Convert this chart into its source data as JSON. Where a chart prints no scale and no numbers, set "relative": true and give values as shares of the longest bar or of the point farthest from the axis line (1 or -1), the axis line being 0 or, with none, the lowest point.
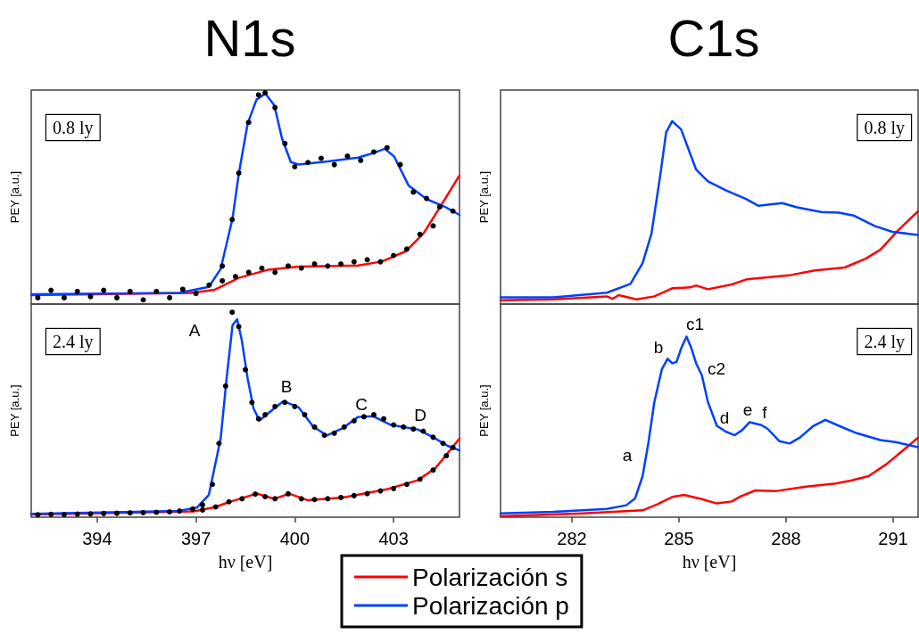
{
  "chart_data": [
    {
      "type": "line",
      "title": "N1s",
      "ylabel": "PEY [a.u.]",
      "relative": true,
      "xlim": [
        392,
        405
      ],
      "tick_labels": false,
      "line_style": "solid",
      "marker": "none",
      "annotations": [
        "0.8 ly"
      ],
      "series": [
        {
          "color": "#ff0000",
          "x": [
            392.0,
            396.85,
            397.57,
            398.3,
            399.2,
            400.11,
            401.92,
            402.64,
            403.37,
            403.91,
            404.36,
            405.0
          ],
          "values": [
            0.042,
            0.053,
            0.068,
            0.124,
            0.163,
            0.177,
            0.183,
            0.201,
            0.25,
            0.335,
            0.447,
            0.609
          ]
        },
        {
          "color": "#0040ff",
          "x": [
            392.0,
            396.48,
            397.39,
            397.75,
            398.11,
            398.3,
            398.57,
            398.84,
            399.11,
            399.38,
            399.61,
            399.88,
            400.11,
            401.01,
            401.92,
            402.37,
            402.73,
            403.01,
            403.46,
            404.0,
            404.55,
            405.0
          ],
          "values": [
            0.046,
            0.053,
            0.081,
            0.166,
            0.405,
            0.616,
            0.855,
            0.968,
            0.996,
            0.94,
            0.785,
            0.672,
            0.661,
            0.675,
            0.693,
            0.714,
            0.735,
            0.7,
            0.56,
            0.497,
            0.461,
            0.422
          ]
        },
        {
          "type": "scatter",
          "color": "#000000",
          "marker": "circle",
          "x": [
            392.2,
            392.6,
            393.0,
            393.4,
            393.8,
            394.2,
            394.6,
            395.0,
            395.4,
            395.8,
            396.2,
            396.6,
            397.0,
            397.4,
            397.8,
            398.1,
            398.3,
            398.6,
            398.9,
            399.1,
            399.4,
            399.7,
            400.0,
            400.4,
            400.8,
            401.2,
            401.6,
            402.0,
            402.4,
            402.8,
            403.2,
            403.6,
            404.0,
            404.4,
            404.8
          ],
          "values": [
            0.03,
            0.065,
            0.03,
            0.06,
            0.035,
            0.065,
            0.03,
            0.06,
            0.02,
            0.06,
            0.03,
            0.07,
            0.05,
            0.09,
            0.18,
            0.4,
            0.62,
            0.86,
            0.99,
            1.0,
            0.93,
            0.76,
            0.65,
            0.67,
            0.69,
            0.66,
            0.7,
            0.68,
            0.72,
            0.74,
            0.66,
            0.53,
            0.5,
            0.46,
            0.44
          ]
        },
        {
          "type": "scatter",
          "color": "#000000",
          "marker": "circle",
          "x": [
            397.8,
            398.2,
            398.6,
            399.0,
            399.4,
            399.8,
            400.2,
            400.6,
            401.0,
            401.4,
            401.8,
            402.2,
            402.6,
            403.0,
            403.4,
            403.8,
            404.2
          ],
          "values": [
            0.11,
            0.13,
            0.15,
            0.17,
            0.15,
            0.18,
            0.17,
            0.19,
            0.18,
            0.19,
            0.2,
            0.21,
            0.2,
            0.23,
            0.26,
            0.33,
            0.37
          ]
        }
      ]
    },
    {
      "type": "line",
      "title": "C1s",
      "ylabel": "PEY [a.u.]",
      "relative": true,
      "xlim": [
        280,
        291.7
      ],
      "tick_labels": false,
      "line_style": "solid",
      "marker": "none",
      "annotations": [
        "0.8 ly"
      ],
      "series": [
        {
          "color": "#ff0000",
          "x": [
            280.0,
            281.48,
            282.98,
            283.14,
            283.31,
            283.81,
            284.31,
            284.81,
            285.31,
            285.48,
            285.81,
            286.48,
            286.89,
            288.14,
            288.81,
            289.64,
            290.23,
            290.64,
            291.14,
            291.7
          ],
          "values": [
            0.021,
            0.026,
            0.042,
            0.029,
            0.049,
            0.026,
            0.042,
            0.086,
            0.091,
            0.102,
            0.081,
            0.107,
            0.135,
            0.159,
            0.184,
            0.2,
            0.248,
            0.297,
            0.403,
            0.508
          ]
        },
        {
          "color": "#0040ff",
          "x": [
            280.0,
            281.48,
            282.98,
            283.64,
            283.98,
            284.23,
            284.48,
            284.64,
            284.81,
            285.06,
            285.48,
            285.81,
            286.31,
            286.89,
            287.23,
            287.89,
            288.31,
            288.98,
            289.48,
            289.89,
            290.48,
            290.98,
            291.7
          ],
          "values": [
            0.037,
            0.037,
            0.062,
            0.11,
            0.224,
            0.386,
            0.711,
            0.939,
            1.0,
            0.955,
            0.735,
            0.671,
            0.622,
            0.573,
            0.537,
            0.552,
            0.529,
            0.503,
            0.5,
            0.484,
            0.427,
            0.395,
            0.378
          ]
        }
      ]
    },
    {
      "type": "line",
      "xlabel": "hν [eV]",
      "ylabel": "PEY [a.u.]",
      "relative": true,
      "xlim": [
        392,
        405
      ],
      "xticks": [
        394,
        397,
        400,
        403
      ],
      "tick_labels": "x",
      "line_style": "solid",
      "marker": "none",
      "annotations": [
        "2.4 ly",
        "A",
        "B",
        "C",
        "D"
      ],
      "series": [
        {
          "color": "#ff0000",
          "x": [
            392.0,
            396.94,
            397.57,
            398.11,
            398.84,
            399.38,
            399.83,
            400.38,
            401.46,
            402.82,
            403.73,
            404.27,
            405.0
          ],
          "values": [
            0.013,
            0.028,
            0.049,
            0.079,
            0.115,
            0.089,
            0.115,
            0.083,
            0.096,
            0.137,
            0.18,
            0.239,
            0.384
          ]
        },
        {
          "color": "#0040ff",
          "x": [
            392.0,
            396.48,
            397.03,
            397.39,
            397.75,
            397.93,
            398.11,
            398.25,
            398.39,
            398.57,
            398.75,
            398.93,
            399.2,
            399.65,
            400.11,
            400.56,
            400.97,
            401.46,
            401.92,
            402.37,
            402.92,
            403.73,
            404.18,
            404.64,
            405.0
          ],
          "values": [
            0.016,
            0.031,
            0.047,
            0.108,
            0.384,
            0.676,
            0.937,
            0.966,
            0.865,
            0.676,
            0.53,
            0.472,
            0.508,
            0.566,
            0.537,
            0.442,
            0.399,
            0.435,
            0.489,
            0.493,
            0.45,
            0.428,
            0.392,
            0.348,
            0.326
          ]
        },
        {
          "type": "scatter",
          "color": "#000000",
          "marker": "circle",
          "x": [
            396.5,
            396.9,
            397.2,
            397.5,
            397.7,
            397.9,
            398.1,
            398.3,
            398.5,
            398.7,
            398.9,
            399.1,
            399.4,
            399.7,
            400.0,
            400.3,
            400.6,
            400.9,
            401.2,
            401.5,
            401.8,
            402.1,
            402.4,
            402.7,
            403.0,
            403.3,
            403.6,
            403.9,
            404.2,
            404.5,
            404.8
          ],
          "values": [
            0.03,
            0.04,
            0.06,
            0.16,
            0.36,
            0.64,
            1.0,
            0.93,
            0.72,
            0.56,
            0.48,
            0.5,
            0.54,
            0.56,
            0.54,
            0.5,
            0.44,
            0.4,
            0.41,
            0.44,
            0.47,
            0.49,
            0.5,
            0.48,
            0.45,
            0.44,
            0.43,
            0.42,
            0.39,
            0.36,
            0.34
          ]
        },
        {
          "type": "scatter",
          "color": "#000000",
          "marker": "circle",
          "x": [
            392.2,
            392.6,
            393.0,
            393.4,
            393.8,
            394.2,
            394.6,
            395.0,
            395.4,
            395.8,
            396.2,
            397.2,
            397.6,
            398.0,
            398.4,
            398.8,
            399.1,
            399.4,
            399.8,
            400.2,
            400.6,
            401.0,
            401.4,
            401.8,
            402.2,
            402.6,
            403.0,
            403.4,
            403.8,
            404.2,
            404.6
          ],
          "values": [
            0.012,
            0.014,
            0.013,
            0.015,
            0.016,
            0.018,
            0.019,
            0.021,
            0.022,
            0.024,
            0.026,
            0.035,
            0.05,
            0.075,
            0.09,
            0.113,
            0.1,
            0.09,
            0.114,
            0.09,
            0.086,
            0.09,
            0.096,
            0.105,
            0.115,
            0.128,
            0.14,
            0.16,
            0.185,
            0.23,
            0.3
          ]
        }
      ]
    },
    {
      "type": "line",
      "xlabel": "hν [eV]",
      "ylabel": "PEY [a.u.]",
      "relative": true,
      "xlim": [
        280,
        291.7
      ],
      "xticks": [
        282,
        285,
        288,
        291
      ],
      "tick_labels": "x",
      "line_style": "solid",
      "marker": "none",
      "legend": "bottom",
      "annotations": [
        "2.4 ly",
        "a",
        "b",
        "c1",
        "c2",
        "d",
        "e",
        "f"
      ],
      "series": [
        {
          "name": "Polarización s",
          "color": "#ff0000",
          "x": [
            280.0,
            282.31,
            283.98,
            284.39,
            284.81,
            285.14,
            285.64,
            286.06,
            286.48,
            286.73,
            287.14,
            287.73,
            288.56,
            289.39,
            289.81,
            290.31,
            290.81,
            291.31,
            291.7
          ],
          "values": [
            0.005,
            0.021,
            0.038,
            0.071,
            0.112,
            0.123,
            0.1,
            0.076,
            0.087,
            0.115,
            0.148,
            0.145,
            0.169,
            0.186,
            0.202,
            0.227,
            0.293,
            0.375,
            0.441
          ]
        },
        {
          "name": "Polarización p",
          "color": "#0040ff",
          "x": [
            280.0,
            281.48,
            282.98,
            283.52,
            283.77,
            283.98,
            284.14,
            284.31,
            284.52,
            284.68,
            284.81,
            284.93,
            285.06,
            285.21,
            285.35,
            285.48,
            285.64,
            285.81,
            286.06,
            286.31,
            286.56,
            286.77,
            286.98,
            287.31,
            287.48,
            287.81,
            288.1,
            288.39,
            288.77,
            289.1,
            289.48,
            289.98,
            290.64,
            291.06,
            291.7
          ],
          "values": [
            0.021,
            0.03,
            0.046,
            0.066,
            0.104,
            0.227,
            0.408,
            0.638,
            0.819,
            0.877,
            0.852,
            0.86,
            0.934,
            1.0,
            0.934,
            0.852,
            0.786,
            0.638,
            0.506,
            0.474,
            0.454,
            0.482,
            0.526,
            0.51,
            0.49,
            0.421,
            0.408,
            0.441,
            0.506,
            0.539,
            0.506,
            0.465,
            0.427,
            0.416,
            0.388
          ]
        }
      ]
    }
  ]
}
